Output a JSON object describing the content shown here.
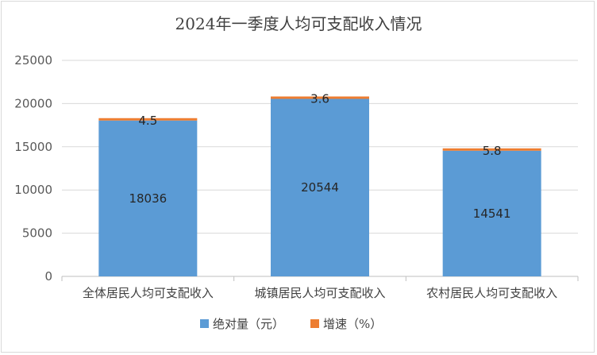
{
  "title": "2024年一季度人均可支配收入情况",
  "colors": {
    "absolute": "#5b9bd5",
    "growth": "#ed7d31",
    "grid": "#d9d9d9",
    "axis": "#bfbfbf"
  },
  "chart_data": {
    "type": "bar",
    "stacked": true,
    "title": "2024年一季度人均可支配收入情况",
    "categories": [
      "全体居民人均可支配收入",
      "城镇居民人均可支配收入",
      "农村居民人均可支配收入"
    ],
    "series": [
      {
        "name": "绝对量（元）",
        "values": [
          18036,
          20544,
          14541
        ]
      },
      {
        "name": "增速（%）",
        "values": [
          4.5,
          3.6,
          5.8
        ]
      }
    ],
    "ylim": [
      0,
      25000
    ],
    "yticks": [
      "0",
      "5000",
      "10000",
      "15000",
      "20000",
      "25000"
    ],
    "grid": true,
    "legend": "bottom"
  }
}
